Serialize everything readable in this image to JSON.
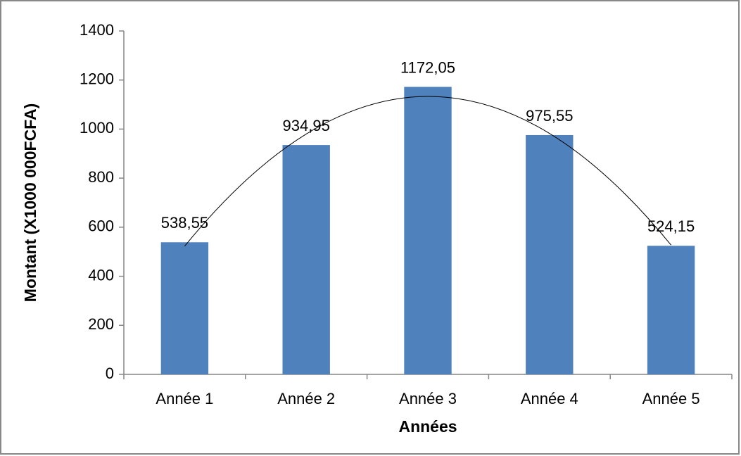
{
  "chart_data": {
    "type": "bar",
    "categories": [
      "Année 1",
      "Année 2",
      "Année 3",
      "Année 4",
      "Année 5"
    ],
    "values": [
      538.55,
      934.95,
      1172.05,
      975.55,
      524.15
    ],
    "value_labels": [
      "538,55",
      "934,95",
      "1172,05",
      "975,55",
      "524,15"
    ],
    "color": "#4f81bd",
    "ylim": [
      0,
      1400
    ],
    "yticks": [
      0,
      200,
      400,
      600,
      800,
      1000,
      1200,
      1400
    ],
    "y_label": "Montant (X1000 000FCFA)",
    "x_label": "Années",
    "trendline": "polynomial",
    "grid": false
  }
}
